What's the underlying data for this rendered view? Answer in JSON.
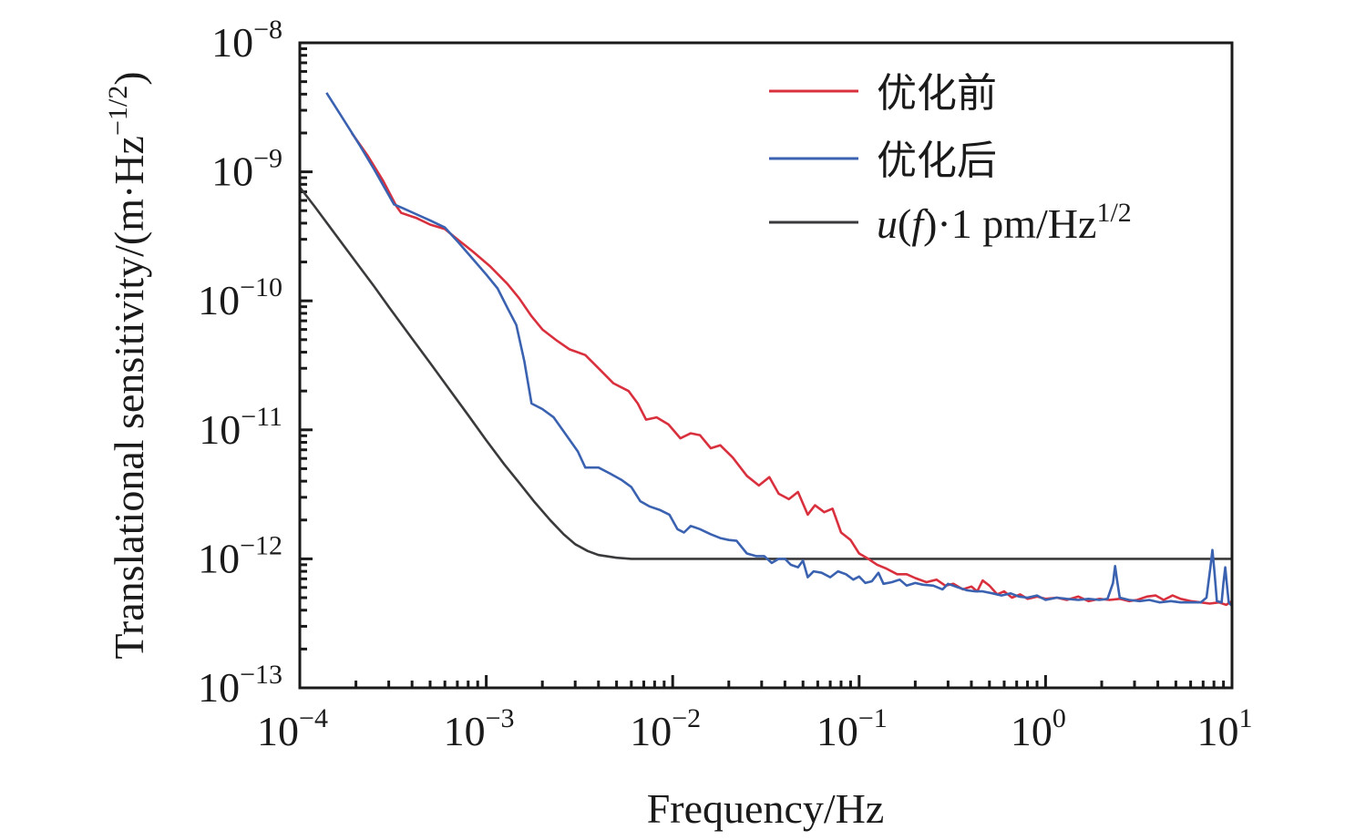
{
  "chart_data": {
    "type": "line",
    "title": "",
    "xlabel": "Frequency/Hz",
    "ylabel": "Translational sensitivity/(m·Hz^-1/2)",
    "ylabel_parts": {
      "main": "Translational sensitivity/(m·Hz",
      "sup": "−1/2",
      "close": ")"
    },
    "xscale": "log",
    "yscale": "log",
    "xlim": [
      0.0001,
      10
    ],
    "ylim": [
      1e-13,
      1e-08
    ],
    "grid": false,
    "legend_position": "top-right",
    "x_ticks": [
      {
        "base": "10",
        "exp": "−4",
        "value": 0.0001
      },
      {
        "base": "10",
        "exp": "−3",
        "value": 0.001
      },
      {
        "base": "10",
        "exp": "−2",
        "value": 0.01
      },
      {
        "base": "10",
        "exp": "−1",
        "value": 0.1
      },
      {
        "base": "10",
        "exp": "0",
        "value": 1
      },
      {
        "base": "10",
        "exp": "1",
        "value": 10
      }
    ],
    "y_ticks": [
      {
        "base": "10",
        "exp": "−8",
        "value": 1e-08
      },
      {
        "base": "10",
        "exp": "−9",
        "value": 1e-09
      },
      {
        "base": "10",
        "exp": "−10",
        "value": 1e-10
      },
      {
        "base": "10",
        "exp": "−11",
        "value": 1e-11
      },
      {
        "base": "10",
        "exp": "−12",
        "value": 1e-12
      },
      {
        "base": "10",
        "exp": "−13",
        "value": 1e-13
      }
    ],
    "series": [
      {
        "name": "优化前",
        "color": "#d9303e",
        "points": [
          [
            0.00019,
            2e-09
          ],
          [
            0.00023,
            1.35e-09
          ],
          [
            0.00028,
            8.5e-10
          ],
          [
            0.00033,
            5.4e-10
          ],
          [
            0.00035,
            4.8e-10
          ],
          [
            0.00042,
            4.4e-10
          ],
          [
            0.0005,
            3.9e-10
          ],
          [
            0.0006,
            3.6e-10
          ],
          [
            0.0007,
            3e-10
          ],
          [
            0.00085,
            2.4e-10
          ],
          [
            0.00105,
            1.85e-10
          ],
          [
            0.0013,
            1.35e-10
          ],
          [
            0.0015,
            1.05e-10
          ],
          [
            0.00175,
            7.6e-11
          ],
          [
            0.002,
            6e-11
          ],
          [
            0.0024,
            4.9e-11
          ],
          [
            0.0028,
            4.2e-11
          ],
          [
            0.0034,
            3.8e-11
          ],
          [
            0.004,
            3e-11
          ],
          [
            0.0048,
            2.3e-11
          ],
          [
            0.0058,
            2e-11
          ],
          [
            0.0065,
            1.6e-11
          ],
          [
            0.0072,
            1.2e-11
          ],
          [
            0.0082,
            1.25e-11
          ],
          [
            0.0095,
            1.1e-11
          ],
          [
            0.011,
            8.6e-12
          ],
          [
            0.0125,
            9.4e-12
          ],
          [
            0.014,
            9.1e-12
          ],
          [
            0.016,
            7.2e-12
          ],
          [
            0.018,
            7.6e-12
          ],
          [
            0.021,
            6.1e-12
          ],
          [
            0.025,
            4.4e-12
          ],
          [
            0.029,
            3.7e-12
          ],
          [
            0.033,
            4.3e-12
          ],
          [
            0.037,
            3.2e-12
          ],
          [
            0.042,
            2.9e-12
          ],
          [
            0.047,
            3.3e-12
          ],
          [
            0.053,
            2.2e-12
          ],
          [
            0.058,
            2.6e-12
          ],
          [
            0.065,
            2.3e-12
          ],
          [
            0.072,
            2.45e-12
          ],
          [
            0.08,
            1.6e-12
          ],
          [
            0.09,
            1.4e-12
          ],
          [
            0.1,
            1.1e-12
          ],
          [
            0.112,
            1e-12
          ],
          [
            0.125,
            9e-13
          ],
          [
            0.14,
            8.4e-13
          ],
          [
            0.16,
            7.6e-13
          ],
          [
            0.18,
            7.6e-13
          ],
          [
            0.2,
            7.1e-13
          ],
          [
            0.23,
            6.6e-13
          ],
          [
            0.26,
            6.9e-13
          ],
          [
            0.29,
            6.2e-13
          ],
          [
            0.32,
            6.4e-13
          ],
          [
            0.36,
            5.8e-13
          ],
          [
            0.4,
            6.1e-13
          ],
          [
            0.43,
            5.6e-13
          ],
          [
            0.46,
            6.8e-13
          ],
          [
            0.5,
            6.2e-13
          ],
          [
            0.55,
            5.3e-13
          ],
          [
            0.6,
            5.6e-13
          ],
          [
            0.66,
            5e-13
          ],
          [
            0.73,
            5.3e-13
          ],
          [
            0.8,
            4.9e-13
          ],
          [
            0.9,
            5.1e-13
          ],
          [
            1.0,
            4.9e-13
          ],
          [
            1.15,
            5e-13
          ],
          [
            1.3,
            4.8e-13
          ],
          [
            1.5,
            5.1e-13
          ],
          [
            1.7,
            4.7e-13
          ],
          [
            1.95,
            4.9e-13
          ],
          [
            2.2,
            4.8e-13
          ],
          [
            2.5,
            4.9e-13
          ],
          [
            2.8,
            4.7e-13
          ],
          [
            3.1,
            4.8e-13
          ],
          [
            3.5,
            5.1e-13
          ],
          [
            3.9,
            5.2e-13
          ],
          [
            4.3,
            4.8e-13
          ],
          [
            4.8,
            5.2e-13
          ],
          [
            5.3,
            4.9e-13
          ],
          [
            6.0,
            4.7e-13
          ],
          [
            6.8,
            4.6e-13
          ],
          [
            7.6,
            4.5e-13
          ],
          [
            8.5,
            4.6e-13
          ],
          [
            9.3,
            4.4e-13
          ],
          [
            10.0,
            4.7e-13
          ]
        ]
      },
      {
        "name": "优化后",
        "color": "#3b62b0",
        "points": [
          [
            0.000139,
            4.1e-09
          ],
          [
            0.00017,
            2.6e-09
          ],
          [
            0.00021,
            1.6e-09
          ],
          [
            0.00025,
            1.05e-09
          ],
          [
            0.00029,
            7.2e-10
          ],
          [
            0.00032,
            5.6e-10
          ],
          [
            0.00036,
            5.2e-10
          ],
          [
            0.00042,
            4.7e-10
          ],
          [
            0.0005,
            4.2e-10
          ],
          [
            0.0006,
            3.7e-10
          ],
          [
            0.0007,
            2.9e-10
          ],
          [
            0.00085,
            2.1e-10
          ],
          [
            0.001,
            1.6e-10
          ],
          [
            0.00115,
            1.25e-10
          ],
          [
            0.0013,
            8.8e-11
          ],
          [
            0.00145,
            6.5e-11
          ],
          [
            0.0016,
            3.4e-11
          ],
          [
            0.00175,
            1.6e-11
          ],
          [
            0.002,
            1.45e-11
          ],
          [
            0.0023,
            1.25e-11
          ],
          [
            0.0027,
            9e-12
          ],
          [
            0.0031,
            6.8e-12
          ],
          [
            0.0034,
            5.1e-12
          ],
          [
            0.004,
            5.1e-12
          ],
          [
            0.0046,
            4.6e-12
          ],
          [
            0.0053,
            4.1e-12
          ],
          [
            0.006,
            3.6e-12
          ],
          [
            0.0067,
            2.8e-12
          ],
          [
            0.0075,
            2.55e-12
          ],
          [
            0.0085,
            2.4e-12
          ],
          [
            0.0096,
            2.2e-12
          ],
          [
            0.0106,
            1.7e-12
          ],
          [
            0.0115,
            1.6e-12
          ],
          [
            0.0125,
            1.8e-12
          ],
          [
            0.014,
            1.7e-12
          ],
          [
            0.016,
            1.55e-12
          ],
          [
            0.018,
            1.45e-12
          ],
          [
            0.02,
            1.4e-12
          ],
          [
            0.022,
            1.38e-12
          ],
          [
            0.025,
            1.1e-12
          ],
          [
            0.028,
            1.05e-12
          ],
          [
            0.031,
            1.05e-12
          ],
          [
            0.034,
            9.3e-13
          ],
          [
            0.037,
            1e-12
          ],
          [
            0.04,
            1e-12
          ],
          [
            0.043,
            9e-13
          ],
          [
            0.047,
            8.6e-13
          ],
          [
            0.05,
            9.7e-13
          ],
          [
            0.053,
            7.2e-13
          ],
          [
            0.057,
            8e-13
          ],
          [
            0.063,
            7.8e-13
          ],
          [
            0.07,
            7.2e-13
          ],
          [
            0.077,
            8e-13
          ],
          [
            0.085,
            7.6e-13
          ],
          [
            0.093,
            6.9e-13
          ],
          [
            0.1,
            7.3e-13
          ],
          [
            0.108,
            6.5e-13
          ],
          [
            0.117,
            6.7e-13
          ],
          [
            0.127,
            7.8e-13
          ],
          [
            0.135,
            6.4e-13
          ],
          [
            0.15,
            6.6e-13
          ],
          [
            0.165,
            6.9e-13
          ],
          [
            0.18,
            6.2e-13
          ],
          [
            0.2,
            6.5e-13
          ],
          [
            0.22,
            6.3e-13
          ],
          [
            0.25,
            6.2e-13
          ],
          [
            0.28,
            5.8e-13
          ],
          [
            0.3,
            6.4e-13
          ],
          [
            0.34,
            6e-13
          ],
          [
            0.38,
            5.7e-13
          ],
          [
            0.42,
            5.6e-13
          ],
          [
            0.46,
            5.6e-13
          ],
          [
            0.52,
            5.4e-13
          ],
          [
            0.58,
            5.2e-13
          ],
          [
            0.65,
            5.4e-13
          ],
          [
            0.72,
            5.1e-13
          ],
          [
            0.8,
            5e-13
          ],
          [
            0.9,
            5.2e-13
          ],
          [
            1.0,
            4.8e-13
          ],
          [
            1.15,
            5e-13
          ],
          [
            1.3,
            4.9e-13
          ],
          [
            1.5,
            4.8e-13
          ],
          [
            1.7,
            4.9e-13
          ],
          [
            1.95,
            4.8e-13
          ],
          [
            2.15,
            4.9e-13
          ],
          [
            2.3,
            6.5e-13
          ],
          [
            2.36,
            8.8e-13
          ],
          [
            2.42,
            6.8e-13
          ],
          [
            2.5,
            5e-13
          ],
          [
            2.8,
            4.8e-13
          ],
          [
            3.2,
            4.7e-13
          ],
          [
            3.6,
            4.8e-13
          ],
          [
            4.1,
            4.6e-13
          ],
          [
            4.7,
            4.7e-13
          ],
          [
            5.3,
            4.6e-13
          ],
          [
            6.0,
            4.6e-13
          ],
          [
            6.8,
            4.6e-13
          ],
          [
            7.3,
            5e-13
          ],
          [
            7.65,
            8.5e-13
          ],
          [
            7.85,
            1.17e-12
          ],
          [
            8.05,
            8e-13
          ],
          [
            8.3,
            4.7e-13
          ],
          [
            8.8,
            4.6e-13
          ],
          [
            9.0,
            6.5e-13
          ],
          [
            9.2,
            8.6e-13
          ],
          [
            9.4,
            6.2e-13
          ],
          [
            9.6,
            4.6e-13
          ],
          [
            10.0,
            4.3e-13
          ]
        ]
      },
      {
        "name": "u(f)·1 pm/Hz^1/2",
        "color": "#3a3a3c",
        "points": [
          [
            0.0001,
            7.6e-10
          ],
          [
            0.00012,
            5.4e-10
          ],
          [
            0.00015,
            3.5e-10
          ],
          [
            0.0002,
            2e-10
          ],
          [
            0.00025,
            1.3e-10
          ],
          [
            0.0003,
            9e-11
          ],
          [
            0.0004,
            5.1e-11
          ],
          [
            0.0005,
            3.3e-11
          ],
          [
            0.0006,
            2.3e-11
          ],
          [
            0.0008,
            1.3e-11
          ],
          [
            0.001,
            8.3e-12
          ],
          [
            0.00125,
            5.4e-12
          ],
          [
            0.0015,
            3.9e-12
          ],
          [
            0.0018,
            2.8e-12
          ],
          [
            0.0022,
            2e-12
          ],
          [
            0.0026,
            1.55e-12
          ],
          [
            0.003,
            1.3e-12
          ],
          [
            0.0035,
            1.15e-12
          ],
          [
            0.004,
            1.07e-12
          ],
          [
            0.005,
            1.02e-12
          ],
          [
            0.006,
            1e-12
          ],
          [
            0.008,
            1e-12
          ],
          [
            0.01,
            1e-12
          ],
          [
            0.1,
            1e-12
          ],
          [
            1.0,
            1e-12
          ],
          [
            10.0,
            1e-12
          ]
        ]
      }
    ],
    "legend": [
      {
        "label": "优化前",
        "color": "#d9303e"
      },
      {
        "label": "优化后",
        "color": "#3b62b0"
      },
      {
        "label_parts": {
          "italic_u": "u",
          "open": "(",
          "italic_f": "f",
          "rest": ")·1 pm/Hz",
          "sup": "1/2"
        },
        "color": "#3a3a3c"
      }
    ]
  }
}
